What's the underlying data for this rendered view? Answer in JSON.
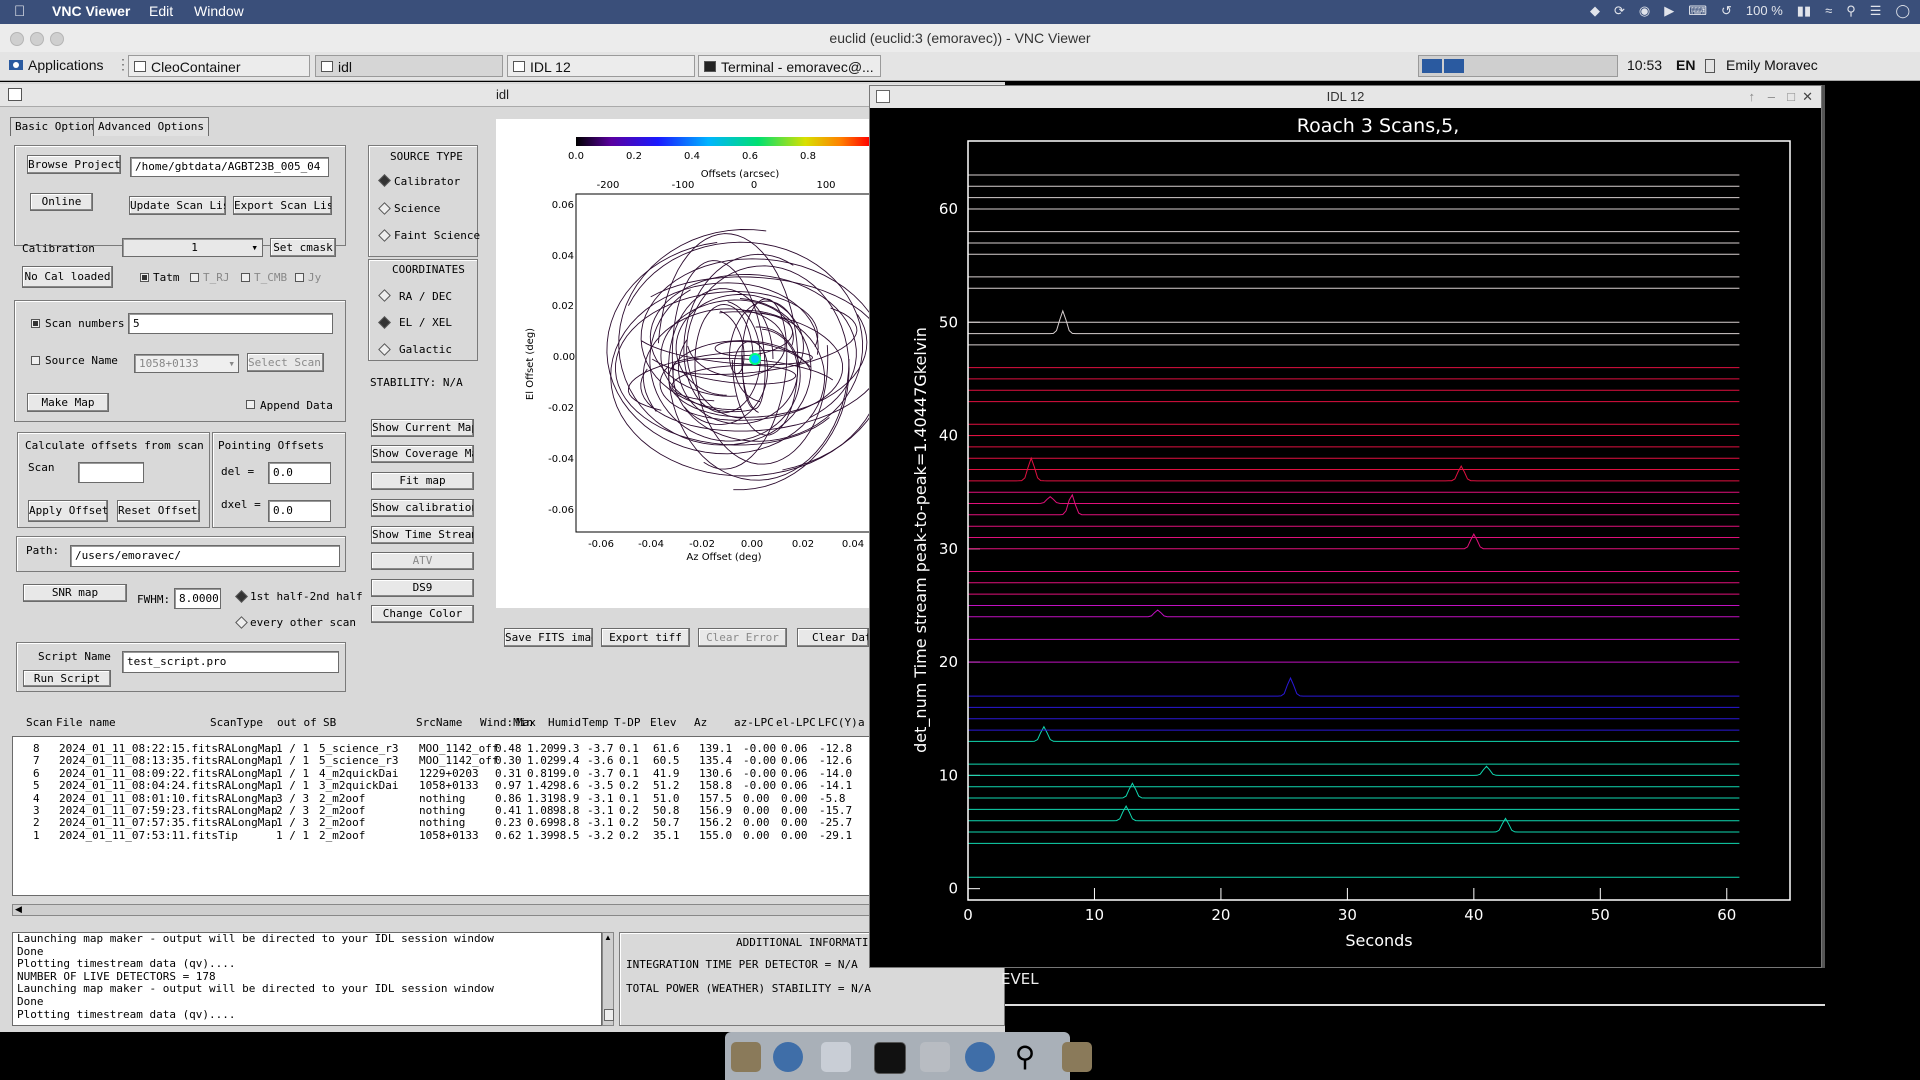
{
  "mac": {
    "app_name": "VNC Viewer",
    "menus": [
      "Edit",
      "Window"
    ],
    "status": {
      "battery": "100 %"
    }
  },
  "vnc_title": "euclid (euclid:3 (emoravec)) - VNC Viewer",
  "panel": {
    "applications": "Applications",
    "tasks": [
      "CleoContainer",
      "idl",
      "IDL 12",
      "Terminal - emoravec@..."
    ],
    "clock": "10:53",
    "lang": "EN",
    "user": "Emily Moravec"
  },
  "idl": {
    "title": "idl",
    "tabs": [
      "Basic Options",
      "Advanced Options"
    ],
    "browse_projects": "Browse Projects",
    "project_path": "/home/gbtdata/AGBT23B_005_04",
    "online": "Online",
    "update_scan_list": "Update Scan List",
    "export_scan_list": "Export Scan List",
    "calibration_label": "Calibration",
    "calibration_value": "1",
    "set_cmask": "Set cmask",
    "no_cal": "No Cal loaded",
    "cal_opts": [
      "Tatm",
      "T_RJ",
      "T_CMB",
      "Jy"
    ],
    "scan_numbers_label": "Scan numbers",
    "scan_numbers_value": "5",
    "source_name_label": "Source Name",
    "source_name_value": "1058+0133",
    "select_scans": "Select Scans",
    "make_map": "Make Map",
    "append_data": "Append Data",
    "calc_offsets": "Calculate offsets from scan",
    "scan_label": "Scan",
    "pointing_offsets": "Pointing Offsets",
    "del_label": "del  =",
    "del_value": "0.0",
    "dxel_label": "dxel =",
    "dxel_value": "0.0",
    "apply_offsets": "Apply Offsets",
    "reset_offsets": "Reset Offsets",
    "path_label": "Path:",
    "path_value": "/users/emoravec/",
    "snr_map": "SNR map",
    "fwhm_label": "FWHM:",
    "fwhm_value": "8.0000",
    "half_opt1": "1st half-2nd half",
    "half_opt2": "every other scan",
    "script_name_label": "Script Name",
    "script_name_value": "test_script.pro",
    "run_script": "Run Script",
    "source_type": "SOURCE TYPE",
    "source_types": [
      "Calibrator",
      "Science",
      "Faint Science"
    ],
    "coordinates": "COORDINATES",
    "coord_opts": [
      "RA / DEC",
      "EL / XEL",
      "Galactic"
    ],
    "stability": "STABILITY: N/A",
    "side_buttons": [
      "Show Current Map",
      "Show Coverage Map",
      "Fit map",
      "Show calibration",
      "Show Time Stream",
      "ATV",
      "DS9",
      "Change Color"
    ],
    "save_fits": "Save FITS image",
    "export_tiff": "Export tiff",
    "clear_error": "Clear Error",
    "clear_data": "Clear Data",
    "additional_info": "ADDITIONAL INFORMATION",
    "integration_time": "INTEGRATION TIME PER DETECTOR    =  N/A",
    "total_power": "TOTAL POWER (WEATHER) STABILITY  =  N/A",
    "level_text": "EVEL"
  },
  "map": {
    "colorbar_ticks": [
      "0.0",
      "0.2",
      "0.4",
      "0.6",
      "0.8"
    ],
    "top_axis_label": "Offsets (arcsec)",
    "top_ticks": [
      "-200",
      "-100",
      "0",
      "100"
    ],
    "xlabel": "Az Offset (deg)",
    "ylabel": "El Offset (deg)",
    "x_ticks": [
      "-0.06",
      "-0.04",
      "-0.02",
      "0.00",
      "0.02",
      "0.04"
    ],
    "y_ticks": [
      "0.06",
      "0.04",
      "0.02",
      "0.00",
      "-0.02",
      "-0.04",
      "-0.06"
    ]
  },
  "scans": {
    "headers": [
      "Scan",
      "File name",
      "ScanType",
      "out of",
      "SB",
      "SrcName",
      "Wind:Min",
      "Max",
      "Humid",
      "Temp",
      "T-DP",
      "Elev",
      "Az",
      "az-LPC",
      "el-LPC",
      "LFC(Y)",
      "a"
    ],
    "rows": [
      [
        "8",
        "2024_01_11_08:22:15.fits",
        "RALongMap",
        "1 / 1",
        "5_science_r3",
        "MOO_1142_off",
        "0.48",
        "1.20",
        "99.3",
        "-3.7",
        "0.1",
        "61.6",
        "139.1",
        "-0.00",
        "0.06",
        "-12.8"
      ],
      [
        "7",
        "2024_01_11_08:13:35.fits",
        "RALongMap",
        "1 / 1",
        "5_science_r3",
        "MOO_1142_off",
        "0.30",
        "1.02",
        "99.4",
        "-3.6",
        "0.1",
        "60.5",
        "135.4",
        "-0.00",
        "0.06",
        "-12.6"
      ],
      [
        "6",
        "2024_01_11_08:09:22.fits",
        "RALongMap",
        "1 / 1",
        "4_m2quickDai",
        "1229+0203",
        "0.31",
        "0.81",
        "99.0",
        "-3.7",
        "0.1",
        "41.9",
        "130.6",
        "-0.00",
        "0.06",
        "-14.0"
      ],
      [
        "5",
        "2024_01_11_08:04:24.fits",
        "RALongMap",
        "1 / 1",
        "3_m2quickDai",
        "1058+0133",
        "0.97",
        "1.42",
        "98.6",
        "-3.5",
        "0.2",
        "51.2",
        "158.8",
        "-0.00",
        "0.06",
        "-14.1"
      ],
      [
        "4",
        "2024_01_11_08:01:10.fits",
        "RALongMap",
        "3 / 3",
        "2_m2oof",
        "nothing",
        "0.86",
        "1.31",
        "98.9",
        "-3.1",
        "0.1",
        "51.0",
        "157.5",
        "0.00",
        "0.00",
        "-5.8"
      ],
      [
        "3",
        "2024_01_11_07:59:23.fits",
        "RALongMap",
        "2 / 3",
        "2_m2oof",
        "nothing",
        "0.41",
        "1.08",
        "98.8",
        "-3.1",
        "0.2",
        "50.8",
        "156.9",
        "0.00",
        "0.00",
        "-15.7"
      ],
      [
        "2",
        "2024_01_11_07:57:35.fits",
        "RALongMap",
        "1 / 3",
        "2_m2oof",
        "nothing",
        "0.23",
        "0.69",
        "98.8",
        "-3.1",
        "0.2",
        "50.7",
        "156.2",
        "0.00",
        "0.00",
        "-25.7"
      ],
      [
        "1",
        "2024_01_11_07:53:11.fits",
        "Tip",
        "1 / 1",
        "2_m2oof",
        "1058+0133",
        "0.62",
        "1.39",
        "98.5",
        "-3.2",
        "0.2",
        "35.1",
        "155.0",
        "0.00",
        "0.00",
        "-29.1"
      ]
    ]
  },
  "log": {
    "lines": [
      "Launching map maker - output will be directed to your IDL session window",
      "Done",
      "Plotting timestream data (qv)....",
      "NUMBER OF LIVE DETECTORS = 178",
      "Launching map maker - output will be directed to your IDL session window",
      "Done",
      "Plotting timestream data (qv)...."
    ]
  },
  "plot": {
    "window_title": "IDL 12",
    "chart_data": {
      "type": "line",
      "title": "Roach 3 Scans,5,",
      "xlabel": "Seconds",
      "ylabel": "det_num Time stream peak-to-peak=1.40447Gkelvin",
      "xlim": [
        0,
        65
      ],
      "ylim": [
        -1,
        66
      ],
      "x_ticks": [
        "0",
        "10",
        "20",
        "30",
        "40",
        "50",
        "60"
      ],
      "y_ticks": [
        "0",
        "10",
        "20",
        "30",
        "40",
        "50",
        "60"
      ],
      "x_tick_values": [
        0,
        10,
        20,
        30,
        40,
        50,
        60
      ],
      "y_tick_values": [
        0,
        10,
        20,
        30,
        40,
        50,
        60
      ],
      "trace_x_range": [
        0,
        61
      ],
      "trace_offsets": [
        1,
        4,
        5,
        6,
        7,
        8,
        9,
        10,
        11,
        13,
        14,
        15,
        16,
        17,
        20,
        22,
        24,
        25,
        26,
        27,
        28,
        30,
        31,
        32,
        33,
        34,
        35,
        36,
        37,
        38,
        39,
        40,
        41,
        43,
        44,
        45,
        46,
        48,
        49,
        50,
        53,
        54,
        56,
        57,
        58,
        60,
        61,
        62,
        63
      ],
      "peaks": [
        {
          "trace": 49,
          "x": 7.5,
          "h": 2.0
        },
        {
          "trace": 36,
          "x": 5.0,
          "h": 2.0
        },
        {
          "trace": 36,
          "x": 39.0,
          "h": 1.3
        },
        {
          "trace": 33,
          "x": 8.2,
          "h": 1.8
        },
        {
          "trace": 34,
          "x": 6.5,
          "h": 0.6
        },
        {
          "trace": 30,
          "x": 40.0,
          "h": 1.3
        },
        {
          "trace": 24,
          "x": 15.0,
          "h": 0.6
        },
        {
          "trace": 17,
          "x": 25.5,
          "h": 1.6
        },
        {
          "trace": 13,
          "x": 6.0,
          "h": 1.3
        },
        {
          "trace": 10,
          "x": 41.0,
          "h": 0.8
        },
        {
          "trace": 8,
          "x": 13.0,
          "h": 1.3
        },
        {
          "trace": 6,
          "x": 12.5,
          "h": 1.3
        },
        {
          "trace": 5,
          "x": 42.5,
          "h": 1.2
        }
      ]
    }
  },
  "colors": {
    "accent": "#3a4f7a"
  }
}
